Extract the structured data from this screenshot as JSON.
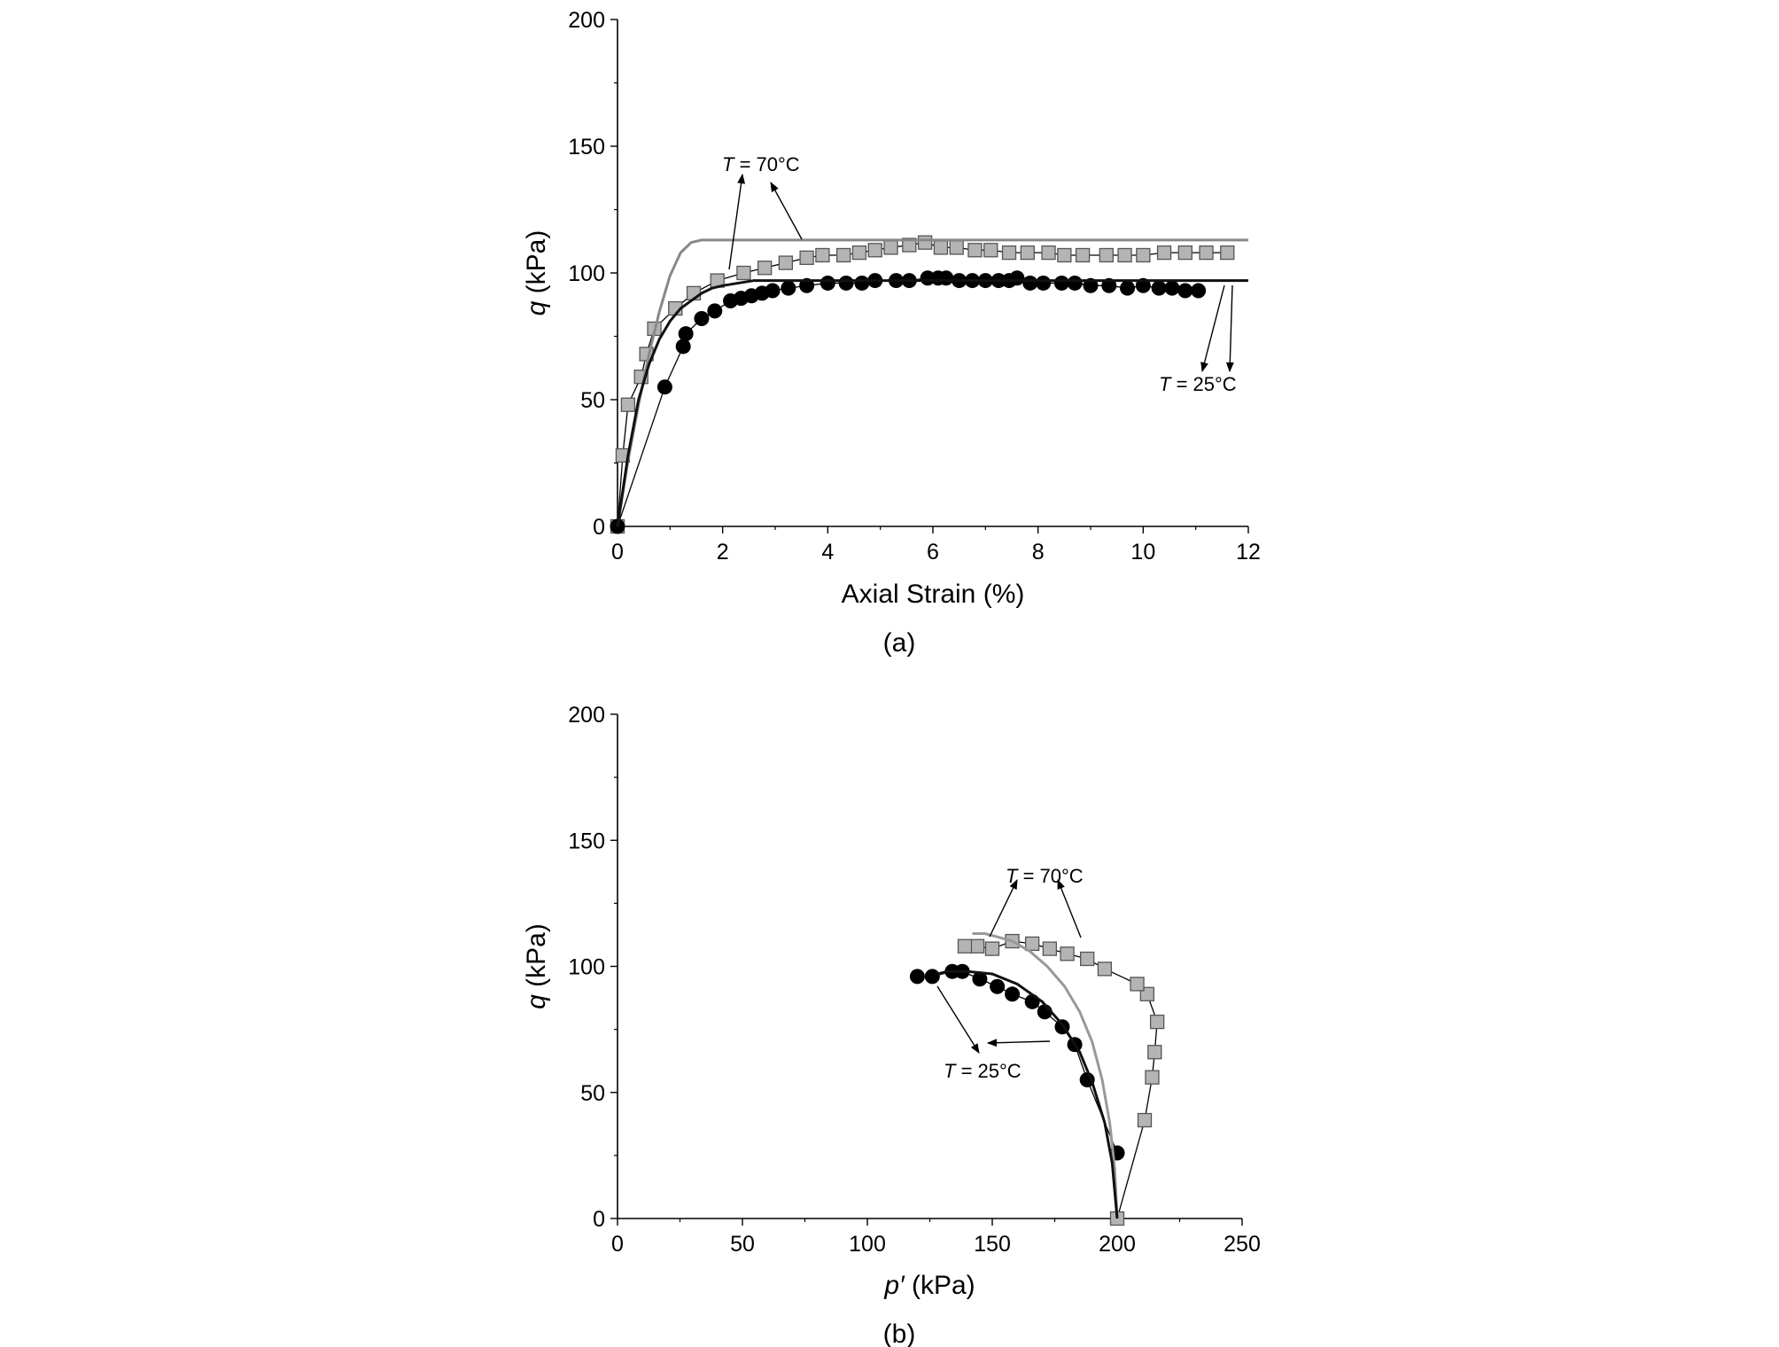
{
  "chart_data": [
    {
      "type": "scatter",
      "panel_label": "(a)",
      "xlabel": "Axial Strain (%)",
      "ylabel_symbol": "q",
      "ylabel_unit": " (kPa)",
      "xlim": [
        0,
        12
      ],
      "ylim": [
        0,
        200
      ],
      "xticks": [
        0,
        2,
        4,
        6,
        8,
        10,
        12
      ],
      "yticks": [
        0,
        50,
        100,
        150,
        200
      ],
      "grid": false,
      "annotations": [
        {
          "symbol": "T",
          "text": " = 70°C"
        },
        {
          "symbol": "T",
          "text": " = 25°C"
        }
      ],
      "series": [
        {
          "marker": "square",
          "color": "#b4b4b4",
          "x": [
            0,
            0.1,
            0.2,
            0.45,
            0.55,
            0.7,
            1.1,
            1.45,
            1.9,
            2.4,
            2.8,
            3.2,
            3.6,
            3.9,
            4.3,
            4.6,
            4.9,
            5.2,
            5.55,
            5.85,
            6.15,
            6.45,
            6.8,
            7.1,
            7.45,
            7.8,
            8.2,
            8.5,
            8.85,
            9.3,
            9.65,
            10.0,
            10.4,
            10.8,
            11.2,
            11.6
          ],
          "y": [
            0,
            28,
            48,
            59,
            68,
            78,
            86,
            92,
            97,
            100,
            102,
            104,
            106,
            107,
            107,
            108,
            109,
            110,
            111,
            112,
            110,
            110,
            109,
            109,
            108,
            108,
            108,
            107,
            107,
            107,
            107,
            107,
            108,
            108,
            108,
            108
          ]
        },
        {
          "marker": "circle",
          "color": "#000000",
          "x": [
            0,
            0.9,
            1.25,
            1.3,
            1.6,
            1.85,
            2.15,
            2.35,
            2.55,
            2.75,
            2.95,
            3.25,
            3.6,
            4.0,
            4.35,
            4.65,
            4.9,
            5.3,
            5.55,
            5.9,
            6.1,
            6.25,
            6.5,
            6.75,
            7.0,
            7.25,
            7.45,
            7.6,
            7.85,
            8.1,
            8.45,
            8.7,
            9.0,
            9.35,
            9.7,
            10.0,
            10.3,
            10.55,
            10.8,
            11.05
          ],
          "y": [
            0,
            55,
            71,
            76,
            82,
            85,
            89,
            90,
            91,
            92,
            93,
            94,
            95,
            96,
            96,
            96,
            97,
            97,
            97,
            98,
            98,
            98,
            97,
            97,
            97,
            97,
            97,
            98,
            96,
            96,
            96,
            96,
            95,
            95,
            94,
            95,
            94,
            94,
            93,
            93
          ]
        },
        {
          "line": "fit",
          "color": "#888888",
          "x": [
            0,
            0.2,
            0.4,
            0.6,
            0.8,
            1.0,
            1.2,
            1.4,
            1.6,
            1.8,
            2.0,
            2.5,
            3,
            4,
            6,
            8,
            10,
            12
          ],
          "y": [
            0,
            26,
            48,
            68,
            85,
            99,
            108,
            112,
            113,
            113,
            113,
            113,
            113,
            113,
            113,
            113,
            113,
            113
          ]
        },
        {
          "line": "fit",
          "color": "#111111",
          "x": [
            0,
            0.2,
            0.4,
            0.6,
            0.8,
            1.0,
            1.2,
            1.4,
            1.6,
            1.8,
            2.0,
            2.3,
            2.6,
            3.0,
            3.5,
            4,
            6,
            8,
            10,
            12
          ],
          "y": [
            0,
            28,
            50,
            64,
            74,
            81,
            86,
            89,
            92,
            94,
            95,
            96,
            97,
            97,
            97,
            97,
            97,
            97,
            97,
            97
          ]
        }
      ]
    },
    {
      "type": "scatter",
      "panel_label": "(b)",
      "xlabel_symbol": "p′",
      "xlabel_unit": " (kPa)",
      "ylabel_symbol": "q",
      "ylabel_unit": " (kPa)",
      "xlim": [
        0,
        250
      ],
      "ylim": [
        0,
        200
      ],
      "xticks": [
        0,
        50,
        100,
        150,
        200,
        250
      ],
      "yticks": [
        0,
        50,
        100,
        150,
        200
      ],
      "grid": false,
      "annotations": [
        {
          "symbol": "T",
          "text": " = 70°C"
        },
        {
          "symbol": "T",
          "text": " = 25°C"
        }
      ],
      "series": [
        {
          "marker": "square",
          "color": "#b4b4b4",
          "x": [
            200,
            211,
            214,
            215,
            216,
            212,
            208,
            195,
            188,
            180,
            173,
            166,
            158,
            150,
            144,
            139
          ],
          "y": [
            0,
            39,
            56,
            66,
            78,
            89,
            93,
            99,
            103,
            105,
            107,
            109,
            110,
            107,
            108,
            108
          ],
          "connected": true
        },
        {
          "marker": "circle",
          "color": "#000000",
          "x": [
            200,
            188,
            183,
            178,
            171,
            166,
            158,
            152,
            145,
            138,
            134,
            126,
            120
          ],
          "y": [
            26,
            55,
            69,
            76,
            82,
            86,
            89,
            92,
            95,
            98,
            98,
            96,
            96
          ]
        },
        {
          "line": "fit",
          "color": "#999999",
          "x": [
            200,
            199,
            197,
            194,
            190,
            185,
            179,
            172,
            165,
            158,
            151,
            147,
            142
          ],
          "y": [
            0,
            20,
            38,
            55,
            70,
            82,
            92,
            100,
            106,
            110,
            112,
            113,
            113
          ]
        },
        {
          "line": "fit",
          "color": "#111111",
          "x": [
            200,
            198,
            195,
            190,
            185,
            178,
            170,
            160,
            150,
            140,
            132,
            128
          ],
          "y": [
            0,
            22,
            38,
            54,
            66,
            77,
            86,
            93,
            97,
            98,
            98,
            97
          ]
        }
      ]
    }
  ]
}
